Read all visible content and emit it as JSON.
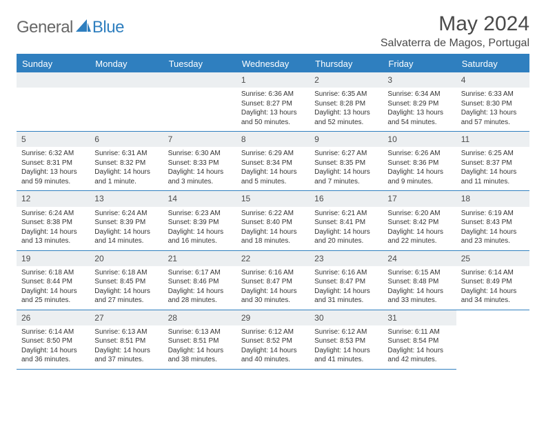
{
  "brand": {
    "part1": "General",
    "part2": "Blue"
  },
  "title": "May 2024",
  "location": "Salvaterra de Magos, Portugal",
  "colors": {
    "accent": "#2f7fbf",
    "daynum_bg": "#eceff1",
    "text": "#4a4a4a"
  },
  "weekdays": [
    "Sunday",
    "Monday",
    "Tuesday",
    "Wednesday",
    "Thursday",
    "Friday",
    "Saturday"
  ],
  "grid": {
    "first_weekday_index": 3,
    "days_in_month": 31
  },
  "days": {
    "1": {
      "sunrise": "Sunrise: 6:36 AM",
      "sunset": "Sunset: 8:27 PM",
      "daylight": "Daylight: 13 hours and 50 minutes."
    },
    "2": {
      "sunrise": "Sunrise: 6:35 AM",
      "sunset": "Sunset: 8:28 PM",
      "daylight": "Daylight: 13 hours and 52 minutes."
    },
    "3": {
      "sunrise": "Sunrise: 6:34 AM",
      "sunset": "Sunset: 8:29 PM",
      "daylight": "Daylight: 13 hours and 54 minutes."
    },
    "4": {
      "sunrise": "Sunrise: 6:33 AM",
      "sunset": "Sunset: 8:30 PM",
      "daylight": "Daylight: 13 hours and 57 minutes."
    },
    "5": {
      "sunrise": "Sunrise: 6:32 AM",
      "sunset": "Sunset: 8:31 PM",
      "daylight": "Daylight: 13 hours and 59 minutes."
    },
    "6": {
      "sunrise": "Sunrise: 6:31 AM",
      "sunset": "Sunset: 8:32 PM",
      "daylight": "Daylight: 14 hours and 1 minute."
    },
    "7": {
      "sunrise": "Sunrise: 6:30 AM",
      "sunset": "Sunset: 8:33 PM",
      "daylight": "Daylight: 14 hours and 3 minutes."
    },
    "8": {
      "sunrise": "Sunrise: 6:29 AM",
      "sunset": "Sunset: 8:34 PM",
      "daylight": "Daylight: 14 hours and 5 minutes."
    },
    "9": {
      "sunrise": "Sunrise: 6:27 AM",
      "sunset": "Sunset: 8:35 PM",
      "daylight": "Daylight: 14 hours and 7 minutes."
    },
    "10": {
      "sunrise": "Sunrise: 6:26 AM",
      "sunset": "Sunset: 8:36 PM",
      "daylight": "Daylight: 14 hours and 9 minutes."
    },
    "11": {
      "sunrise": "Sunrise: 6:25 AM",
      "sunset": "Sunset: 8:37 PM",
      "daylight": "Daylight: 14 hours and 11 minutes."
    },
    "12": {
      "sunrise": "Sunrise: 6:24 AM",
      "sunset": "Sunset: 8:38 PM",
      "daylight": "Daylight: 14 hours and 13 minutes."
    },
    "13": {
      "sunrise": "Sunrise: 6:24 AM",
      "sunset": "Sunset: 8:39 PM",
      "daylight": "Daylight: 14 hours and 14 minutes."
    },
    "14": {
      "sunrise": "Sunrise: 6:23 AM",
      "sunset": "Sunset: 8:39 PM",
      "daylight": "Daylight: 14 hours and 16 minutes."
    },
    "15": {
      "sunrise": "Sunrise: 6:22 AM",
      "sunset": "Sunset: 8:40 PM",
      "daylight": "Daylight: 14 hours and 18 minutes."
    },
    "16": {
      "sunrise": "Sunrise: 6:21 AM",
      "sunset": "Sunset: 8:41 PM",
      "daylight": "Daylight: 14 hours and 20 minutes."
    },
    "17": {
      "sunrise": "Sunrise: 6:20 AM",
      "sunset": "Sunset: 8:42 PM",
      "daylight": "Daylight: 14 hours and 22 minutes."
    },
    "18": {
      "sunrise": "Sunrise: 6:19 AM",
      "sunset": "Sunset: 8:43 PM",
      "daylight": "Daylight: 14 hours and 23 minutes."
    },
    "19": {
      "sunrise": "Sunrise: 6:18 AM",
      "sunset": "Sunset: 8:44 PM",
      "daylight": "Daylight: 14 hours and 25 minutes."
    },
    "20": {
      "sunrise": "Sunrise: 6:18 AM",
      "sunset": "Sunset: 8:45 PM",
      "daylight": "Daylight: 14 hours and 27 minutes."
    },
    "21": {
      "sunrise": "Sunrise: 6:17 AM",
      "sunset": "Sunset: 8:46 PM",
      "daylight": "Daylight: 14 hours and 28 minutes."
    },
    "22": {
      "sunrise": "Sunrise: 6:16 AM",
      "sunset": "Sunset: 8:47 PM",
      "daylight": "Daylight: 14 hours and 30 minutes."
    },
    "23": {
      "sunrise": "Sunrise: 6:16 AM",
      "sunset": "Sunset: 8:47 PM",
      "daylight": "Daylight: 14 hours and 31 minutes."
    },
    "24": {
      "sunrise": "Sunrise: 6:15 AM",
      "sunset": "Sunset: 8:48 PM",
      "daylight": "Daylight: 14 hours and 33 minutes."
    },
    "25": {
      "sunrise": "Sunrise: 6:14 AM",
      "sunset": "Sunset: 8:49 PM",
      "daylight": "Daylight: 14 hours and 34 minutes."
    },
    "26": {
      "sunrise": "Sunrise: 6:14 AM",
      "sunset": "Sunset: 8:50 PM",
      "daylight": "Daylight: 14 hours and 36 minutes."
    },
    "27": {
      "sunrise": "Sunrise: 6:13 AM",
      "sunset": "Sunset: 8:51 PM",
      "daylight": "Daylight: 14 hours and 37 minutes."
    },
    "28": {
      "sunrise": "Sunrise: 6:13 AM",
      "sunset": "Sunset: 8:51 PM",
      "daylight": "Daylight: 14 hours and 38 minutes."
    },
    "29": {
      "sunrise": "Sunrise: 6:12 AM",
      "sunset": "Sunset: 8:52 PM",
      "daylight": "Daylight: 14 hours and 40 minutes."
    },
    "30": {
      "sunrise": "Sunrise: 6:12 AM",
      "sunset": "Sunset: 8:53 PM",
      "daylight": "Daylight: 14 hours and 41 minutes."
    },
    "31": {
      "sunrise": "Sunrise: 6:11 AM",
      "sunset": "Sunset: 8:54 PM",
      "daylight": "Daylight: 14 hours and 42 minutes."
    }
  }
}
